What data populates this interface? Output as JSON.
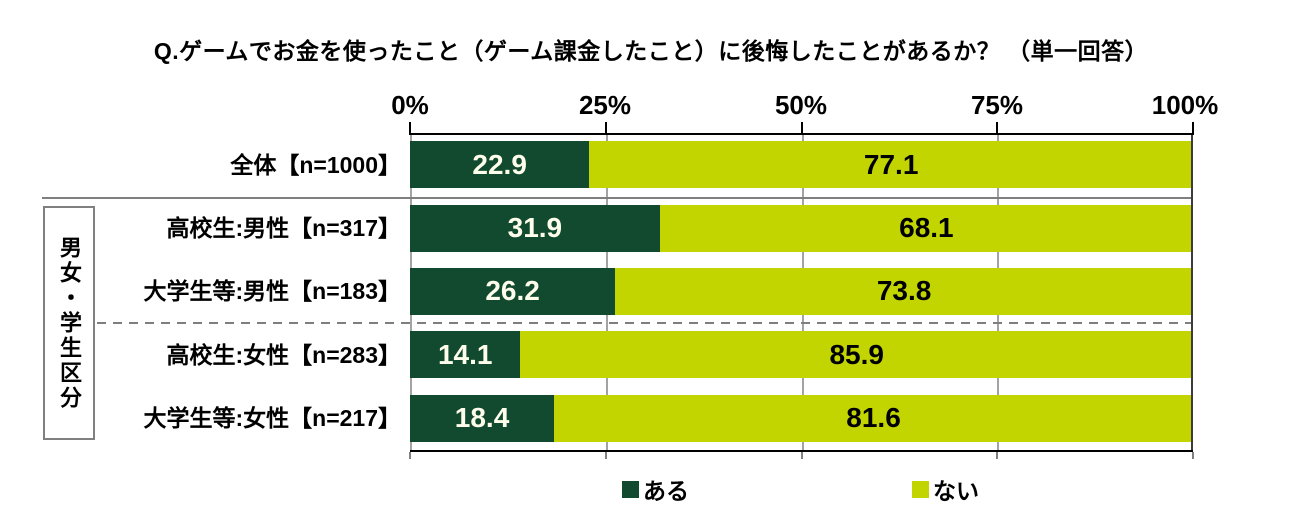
{
  "title": "Q.ゲームでお金を使ったこと（ゲーム課金したこと）に後悔したことがあるか？ （単一回答）",
  "group_label": "男女・学生区分",
  "legend": {
    "items": [
      {
        "label": "ある",
        "color": "#124a30"
      },
      {
        "label": "ない",
        "color": "#c2d500"
      }
    ]
  },
  "colors": {
    "aru_segment": "#124a30",
    "nai_segment": "#c2d500",
    "aru_value_text": "#fffdeb",
    "nai_value_text": "#000000",
    "gridline": "#a3a3a3",
    "separator": "#7f7f7f"
  },
  "chart_data": {
    "type": "bar",
    "stacked": true,
    "orientation": "horizontal",
    "title": "Q.ゲームでお金を使ったこと（ゲーム課金したこと）に後悔したことがあるか？ （単一回答）",
    "categories": [
      "全体【n=1000】",
      "高校生:男性【n=317】",
      "大学生等:男性【n=183】",
      "高校生:女性【n=283】",
      "大学生等:女性【n=217】"
    ],
    "series": [
      {
        "name": "ある",
        "color": "#124a30",
        "values": [
          22.9,
          31.9,
          26.2,
          14.1,
          18.4
        ]
      },
      {
        "name": "ない",
        "color": "#c2d500",
        "values": [
          77.1,
          68.1,
          73.8,
          85.9,
          81.6
        ]
      }
    ],
    "xlim": [
      0,
      100
    ],
    "x_ticks": [
      "0%",
      "25%",
      "50%",
      "75%",
      "100%"
    ],
    "grid": true,
    "legend_position": "bottom",
    "group_bracket": {
      "label": "男女・学生区分",
      "rows": [
        1,
        2,
        3,
        4
      ]
    }
  }
}
